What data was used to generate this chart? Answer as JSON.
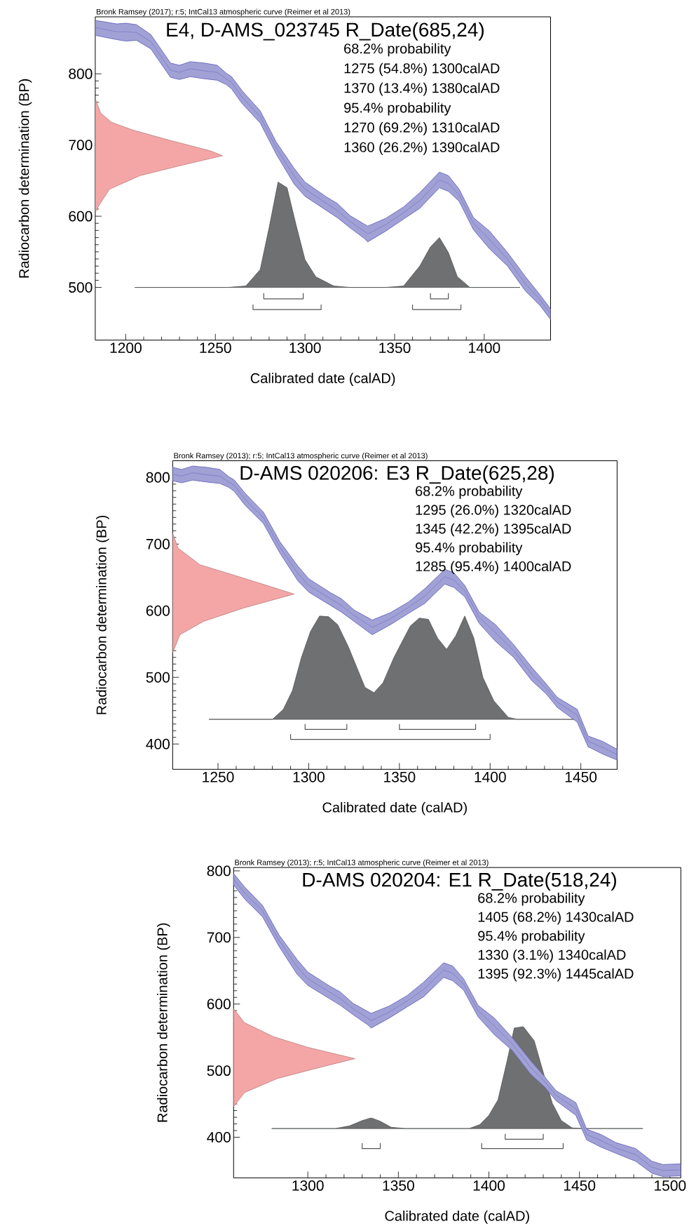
{
  "chart_data": [
    {
      "type": "area",
      "title": "E4, D-AMS_023745 R_Date(685,24)",
      "subtitle": "Bronk Ramsey (2017); r:5; IntCal13 atmospheric curve (Reimer et al 2013)",
      "xlabel": "Calibrated date (calAD)",
      "ylabel": "Radiocarbon determination (BP)",
      "xlim": [
        1183,
        1437
      ],
      "ylim": [
        426,
        880
      ],
      "xticks": [
        1200,
        1250,
        1300,
        1350,
        1400
      ],
      "yticks": [
        500,
        600,
        700,
        800
      ],
      "annotations": [
        "68.2% probability",
        "1275 (54.8%) 1300calAD",
        "1370 (13.4%) 1380calAD",
        "95.4% probability",
        "1270 (69.2%) 1310calAD",
        "1360 (26.2%) 1390calAD"
      ],
      "series": [
        {
          "color": "#f4a6a6",
          "x": [
            1183,
            1186,
            1192,
            1204,
            1224,
            1247,
            1254,
            1232,
            1208,
            1191,
            1185,
            1183
          ],
          "values": [
            765,
            745,
            732,
            721,
            707,
            692,
            685,
            672,
            657,
            638,
            615,
            605
          ]
        },
        {
          "color": "#6e7072",
          "x": [
            1205,
            1257,
            1267,
            1275,
            1280,
            1285,
            1290,
            1295,
            1300,
            1306,
            1316,
            1325,
            1345,
            1355,
            1364,
            1370,
            1375,
            1380,
            1385,
            1392,
            1420
          ],
          "values": [
            500,
            500,
            502,
            525,
            584,
            648,
            640,
            588,
            539,
            515,
            502,
            500,
            500,
            502,
            530,
            557,
            570,
            549,
            515,
            500,
            500
          ]
        },
        {
          "type": "line",
          "color": "#6f6fc0",
          "x": [
            1183,
            1195,
            1200,
            1206,
            1214,
            1225,
            1230,
            1236,
            1244,
            1251,
            1256,
            1259,
            1265,
            1275,
            1284,
            1294,
            1300,
            1312,
            1318,
            1325,
            1333,
            1335,
            1345,
            1355,
            1364,
            1375,
            1380,
            1386,
            1394,
            1403,
            1413,
            1423,
            1431,
            1437
          ],
          "values": [
            865,
            859,
            859,
            858,
            845,
            805,
            802,
            807,
            804,
            802,
            793,
            788,
            767,
            740,
            696,
            656,
            638,
            618,
            608,
            593,
            579,
            575,
            588,
            605,
            622,
            651,
            646,
            630,
            590,
            567,
            540,
            505,
            483,
            463
          ],
          "upper": [
            875,
            870,
            871,
            869,
            855,
            815,
            812,
            817,
            815,
            812,
            801,
            796,
            776,
            748,
            704,
            667,
            648,
            627,
            618,
            601,
            589,
            586,
            597,
            613,
            633,
            662,
            657,
            638,
            598,
            579,
            549,
            515,
            490,
            470
          ],
          "lower": [
            854,
            848,
            846,
            847,
            835,
            795,
            792,
            796,
            793,
            791,
            785,
            779,
            758,
            731,
            687,
            645,
            628,
            608,
            598,
            584,
            569,
            564,
            579,
            596,
            611,
            640,
            635,
            621,
            581,
            554,
            530,
            495,
            475,
            455
          ]
        },
        {
          "type": "line",
          "color": "#555555",
          "x": [
            1277,
            1277,
            1299,
            1299
          ],
          "values": [
            492,
            484,
            484,
            492
          ]
        },
        {
          "type": "line",
          "color": "#555555",
          "x": [
            1370,
            1370,
            1380,
            1380
          ],
          "values": [
            492,
            484,
            484,
            492
          ]
        },
        {
          "type": "line",
          "color": "#555555",
          "x": [
            1271,
            1271,
            1309,
            1309
          ],
          "values": [
            476,
            469,
            469,
            476
          ]
        },
        {
          "type": "line",
          "color": "#555555",
          "x": [
            1360,
            1360,
            1387,
            1387
          ],
          "values": [
            476,
            469,
            469,
            476
          ]
        }
      ]
    },
    {
      "type": "area",
      "title": "D-AMS 020206: E3 R_Date(625,28)",
      "subtitle": "Bronk Ramsey (2013); r:5; IntCal13 atmospheric curve (Reimer et al 2013)",
      "xlabel": "Calibrated date (calAD)",
      "ylabel": "Radiocarbon determination (BP)",
      "xlim": [
        1225,
        1470
      ],
      "ylim": [
        362,
        825
      ],
      "xticks": [
        1250,
        1300,
        1350,
        1400,
        1450
      ],
      "yticks": [
        400,
        500,
        600,
        700,
        800
      ],
      "annotations": [
        "68.2% probability",
        "1295 (26.0%) 1320calAD",
        "1345 (42.2%) 1395calAD",
        "95.4% probability",
        "1285 (95.4%) 1400calAD"
      ],
      "series": [
        {
          "color": "#f4a6a6",
          "x": [
            1225,
            1228,
            1240,
            1264,
            1292,
            1264,
            1242,
            1229,
            1225
          ],
          "values": [
            716,
            694,
            669,
            649,
            625,
            604,
            584,
            564,
            537
          ]
        },
        {
          "color": "#6e7072",
          "x": [
            1245,
            1280,
            1286,
            1291,
            1296,
            1301,
            1306,
            1311,
            1316,
            1322,
            1331,
            1336,
            1341,
            1347,
            1356,
            1361,
            1366,
            1371,
            1376,
            1381,
            1386,
            1391,
            1396,
            1402,
            1410,
            1415,
            1450
          ],
          "values": [
            437,
            437,
            452,
            480,
            530,
            569,
            592,
            591,
            579,
            545,
            485,
            477,
            492,
            530,
            577,
            589,
            587,
            559,
            542,
            562,
            592,
            559,
            500,
            465,
            440,
            437,
            437
          ]
        },
        {
          "type": "line",
          "color": "#6f6fc0",
          "x": [
            1225,
            1230,
            1236,
            1244,
            1251,
            1256,
            1259,
            1265,
            1275,
            1284,
            1294,
            1300,
            1312,
            1318,
            1325,
            1335,
            1345,
            1355,
            1364,
            1375,
            1380,
            1386,
            1394,
            1403,
            1413,
            1423,
            1431,
            1437,
            1448,
            1454,
            1462,
            1470
          ],
          "values": [
            805,
            802,
            807,
            804,
            802,
            793,
            788,
            767,
            740,
            696,
            656,
            638,
            618,
            608,
            593,
            575,
            588,
            605,
            622,
            651,
            646,
            630,
            590,
            567,
            540,
            505,
            483,
            463,
            443,
            404,
            395,
            384
          ],
          "upper": [
            815,
            812,
            817,
            815,
            812,
            801,
            796,
            776,
            748,
            704,
            667,
            648,
            627,
            618,
            601,
            586,
            597,
            613,
            633,
            662,
            657,
            638,
            598,
            579,
            549,
            515,
            490,
            470,
            452,
            412,
            404,
            392
          ],
          "lower": [
            795,
            792,
            796,
            793,
            791,
            785,
            779,
            758,
            731,
            687,
            645,
            628,
            608,
            598,
            584,
            564,
            579,
            596,
            611,
            640,
            635,
            621,
            581,
            554,
            530,
            495,
            475,
            455,
            433,
            396,
            385,
            376
          ]
        },
        {
          "type": "line",
          "color": "#555555",
          "x": [
            1298,
            1298,
            1321,
            1321
          ],
          "values": [
            430,
            422,
            422,
            430
          ]
        },
        {
          "type": "line",
          "color": "#555555",
          "x": [
            1350,
            1350,
            1392,
            1392
          ],
          "values": [
            430,
            422,
            422,
            430
          ]
        },
        {
          "type": "line",
          "color": "#555555",
          "x": [
            1290,
            1290,
            1400,
            1400
          ],
          "values": [
            415,
            407,
            407,
            415
          ]
        }
      ]
    },
    {
      "type": "area",
      "title": "D-AMS 020204: E1 R_Date(518,24)",
      "subtitle": "Bronk Ramsey (2013); r:5; IntCal13 atmospheric curve (Reimer et al 2013)",
      "xlabel": "Calibrated date (calAD)",
      "ylabel": "Radiocarbon determination (BP)",
      "xlim": [
        1259,
        1506
      ],
      "ylim": [
        339,
        805
      ],
      "xticks": [
        1300,
        1350,
        1400,
        1450,
        1500
      ],
      "yticks": [
        400,
        500,
        600,
        700,
        800
      ],
      "annotations": [
        "68.2% probability",
        "1405 (68.2%) 1430calAD",
        "95.4% probability",
        "1330 (3.1%) 1340calAD",
        "1395 (92.3%) 1445calAD"
      ],
      "series": [
        {
          "color": "#f4a6a6",
          "x": [
            1259,
            1265,
            1281,
            1300,
            1326,
            1304,
            1283,
            1265,
            1259
          ],
          "values": [
            593,
            572,
            551,
            535,
            518,
            503,
            488,
            467,
            446
          ]
        },
        {
          "color": "#6e7072",
          "x": [
            1280,
            1315,
            1323,
            1330,
            1335,
            1340,
            1346,
            1354,
            1389,
            1395,
            1400,
            1405,
            1410,
            1414,
            1419,
            1425,
            1431,
            1435,
            1440,
            1446,
            1452,
            1485
          ],
          "values": [
            413,
            413,
            417,
            425,
            429,
            424,
            415,
            413,
            413,
            419,
            433,
            456,
            514,
            564,
            566,
            545,
            488,
            451,
            425,
            414,
            413,
            413
          ]
        },
        {
          "type": "line",
          "color": "#6f6fc0",
          "x": [
            1259,
            1265,
            1275,
            1284,
            1294,
            1300,
            1312,
            1318,
            1325,
            1333,
            1335,
            1345,
            1355,
            1364,
            1375,
            1380,
            1386,
            1394,
            1403,
            1413,
            1423,
            1431,
            1437,
            1448,
            1454,
            1462,
            1470,
            1481,
            1490,
            1496,
            1506
          ],
          "values": [
            788,
            767,
            740,
            696,
            656,
            638,
            618,
            608,
            593,
            579,
            575,
            588,
            605,
            622,
            651,
            646,
            630,
            590,
            567,
            540,
            505,
            483,
            463,
            443,
            404,
            395,
            384,
            374,
            355,
            350,
            351
          ],
          "upper": [
            796,
            776,
            748,
            704,
            667,
            648,
            627,
            618,
            601,
            589,
            586,
            597,
            613,
            633,
            662,
            657,
            638,
            598,
            579,
            549,
            515,
            490,
            470,
            452,
            412,
            404,
            392,
            383,
            364,
            359,
            360
          ],
          "lower": [
            779,
            758,
            731,
            687,
            645,
            628,
            608,
            598,
            584,
            569,
            564,
            579,
            596,
            611,
            640,
            635,
            621,
            581,
            554,
            530,
            495,
            475,
            455,
            433,
            396,
            385,
            376,
            364,
            346,
            341,
            342
          ]
        },
        {
          "type": "line",
          "color": "#555555",
          "x": [
            1409,
            1409,
            1430,
            1430
          ],
          "values": [
            405,
            397,
            397,
            405
          ]
        },
        {
          "type": "line",
          "color": "#555555",
          "x": [
            1330,
            1330,
            1340,
            1340
          ],
          "values": [
            391,
            383,
            383,
            391
          ]
        },
        {
          "type": "line",
          "color": "#555555",
          "x": [
            1396,
            1396,
            1441,
            1441
          ],
          "values": [
            391,
            383,
            383,
            391
          ]
        }
      ]
    }
  ]
}
